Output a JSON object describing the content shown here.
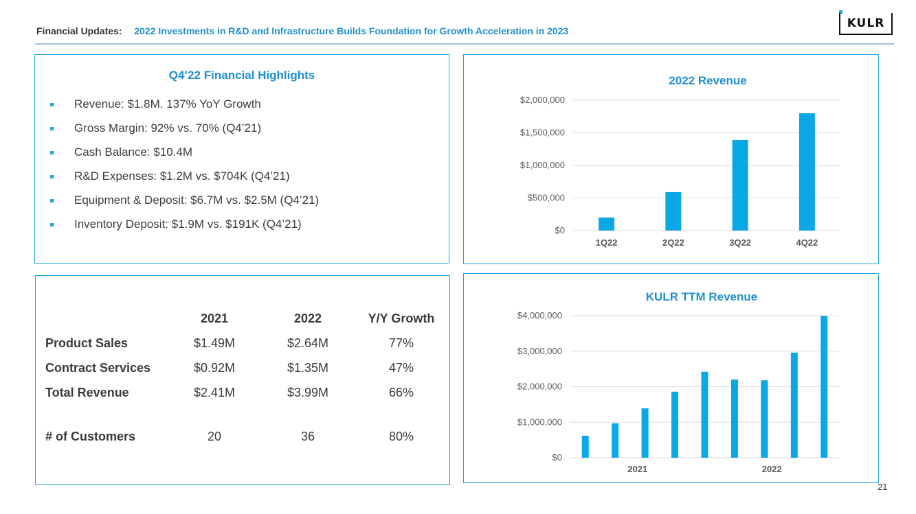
{
  "header": {
    "label": "Financial Updates:",
    "subtitle": "2022 Investments in R&D and Infrastructure Builds Foundation for Growth Acceleration in 2023"
  },
  "logo": {
    "text": "KULR"
  },
  "highlights": {
    "title": "Q4’22 Financial Highlights",
    "items": [
      "Revenue: $1.8M. 137% YoY Growth",
      "Gross Margin: 92% vs. 70% (Q4’21)",
      "Cash Balance: $10.4M",
      "R&D Expenses: $1.2M vs. $704K (Q4’21)",
      "Equipment & Deposit: $6.7M vs. $2.5M (Q4’21)",
      "Inventory Deposit: $1.9M vs. $191K (Q4’21)"
    ]
  },
  "table": {
    "headers": [
      "2021",
      "2022",
      "Y/Y Growth"
    ],
    "rows": [
      {
        "label": "Product Sales",
        "values": [
          "$1.49M",
          "$2.64M",
          "77%"
        ]
      },
      {
        "label": "Contract Services",
        "values": [
          "$0.92M",
          "$1.35M",
          "47%"
        ]
      },
      {
        "label": "Total Revenue",
        "values": [
          "$2.41M",
          "$3.99M",
          "66%"
        ]
      },
      {
        "label": "# of Customers",
        "values": [
          "20",
          "36",
          "80%"
        ]
      }
    ]
  },
  "chart_data": [
    {
      "type": "bar",
      "title": "2022 Revenue",
      "categories": [
        "1Q22",
        "2Q22",
        "3Q22",
        "4Q22"
      ],
      "values": [
        200000,
        590000,
        1390000,
        1800000
      ],
      "yticks": [
        "$0",
        "$500,000",
        "$1,000,000",
        "$1,500,000",
        "$2,000,000"
      ],
      "ylim": [
        0,
        2000000
      ],
      "grid": true,
      "bar_color": "#0ba8e6"
    },
    {
      "type": "bar",
      "title": "KULR TTM Revenue",
      "categories": [
        "",
        "",
        "",
        "",
        "",
        "",
        "",
        "",
        ""
      ],
      "x_group_labels": [
        "2021",
        "2022"
      ],
      "values": [
        620000,
        970000,
        1390000,
        1860000,
        2420000,
        2200000,
        2180000,
        2960000,
        3990000
      ],
      "yticks": [
        "$0",
        "$1,000,000",
        "$2,000,000",
        "$3,000,000",
        "$4,000,000"
      ],
      "ylim": [
        0,
        4000000
      ],
      "grid": true,
      "bar_color": "#0ba8e6"
    }
  ],
  "page_number": "21"
}
